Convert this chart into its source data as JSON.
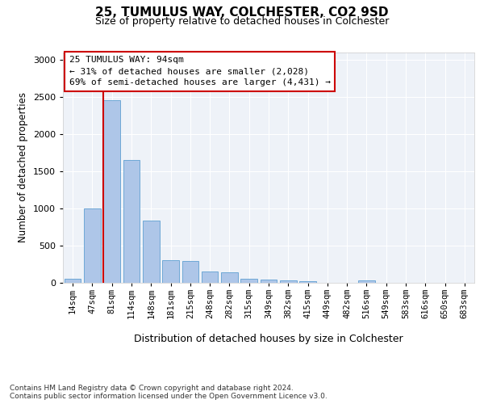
{
  "title": "25, TUMULUS WAY, COLCHESTER, CO2 9SD",
  "subtitle": "Size of property relative to detached houses in Colchester",
  "xlabel": "Distribution of detached houses by size in Colchester",
  "ylabel": "Number of detached properties",
  "categories": [
    "14sqm",
    "47sqm",
    "81sqm",
    "114sqm",
    "148sqm",
    "181sqm",
    "215sqm",
    "248sqm",
    "282sqm",
    "315sqm",
    "349sqm",
    "382sqm",
    "415sqm",
    "449sqm",
    "482sqm",
    "516sqm",
    "549sqm",
    "583sqm",
    "616sqm",
    "650sqm",
    "683sqm"
  ],
  "values": [
    55,
    1000,
    2460,
    1650,
    840,
    300,
    290,
    150,
    145,
    55,
    45,
    30,
    25,
    0,
    0,
    35,
    0,
    0,
    0,
    0,
    0
  ],
  "bar_color": "#aec6e8",
  "bar_edgecolor": "#6fa8d6",
  "vline_color": "#cc0000",
  "vline_x": 1.575,
  "annotation_text": "25 TUMULUS WAY: 94sqm\n← 31% of detached houses are smaller (2,028)\n69% of semi-detached houses are larger (4,431) →",
  "annotation_box_facecolor": "white",
  "annotation_box_edgecolor": "#cc0000",
  "footnote": "Contains HM Land Registry data © Crown copyright and database right 2024.\nContains public sector information licensed under the Open Government Licence v3.0.",
  "ylim": [
    0,
    3100
  ],
  "yticks": [
    0,
    500,
    1000,
    1500,
    2000,
    2500,
    3000
  ],
  "bg_color": "#eef2f8",
  "fig_bg_color": "#ffffff",
  "title_fontsize": 11,
  "subtitle_fontsize": 9,
  "ylabel_fontsize": 8.5,
  "xlabel_fontsize": 9,
  "tick_fontsize": 8,
  "xtick_fontsize": 7.5,
  "footnote_fontsize": 6.5,
  "annotation_fontsize": 8
}
